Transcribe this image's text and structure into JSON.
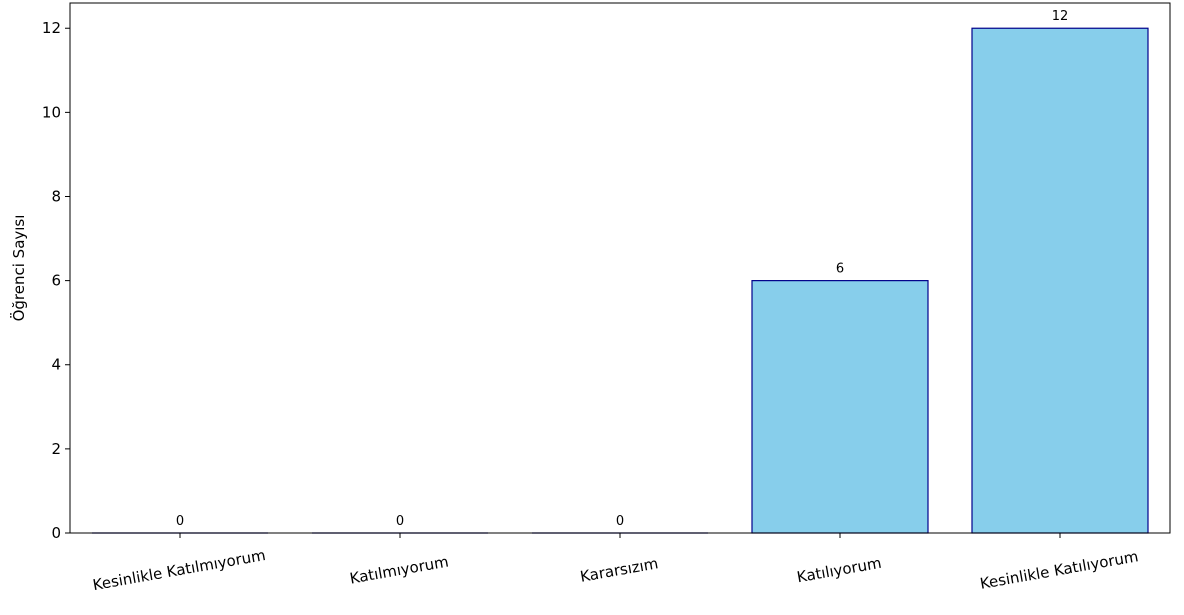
{
  "chart_data": {
    "type": "bar",
    "title": "",
    "xlabel": "",
    "ylabel": "Öğrenci Sayısı",
    "categories": [
      "Kesinlikle Katılmıyorum",
      "Katılmıyorum",
      "Kararsızım",
      "Katılıyorum",
      "Kesinlikle Katılıyorum"
    ],
    "values": [
      0,
      0,
      0,
      6,
      12
    ],
    "data_labels": [
      "0",
      "0",
      "0",
      "6",
      "12"
    ],
    "ylim": [
      0,
      12.6
    ],
    "yticks": [
      0,
      2,
      4,
      6,
      8,
      10,
      12
    ],
    "grid": false,
    "legend": "none",
    "bar_fill_color": "#87CEEB",
    "bar_edge_color": "#00008B",
    "xtick_rotation_deg": -10
  }
}
